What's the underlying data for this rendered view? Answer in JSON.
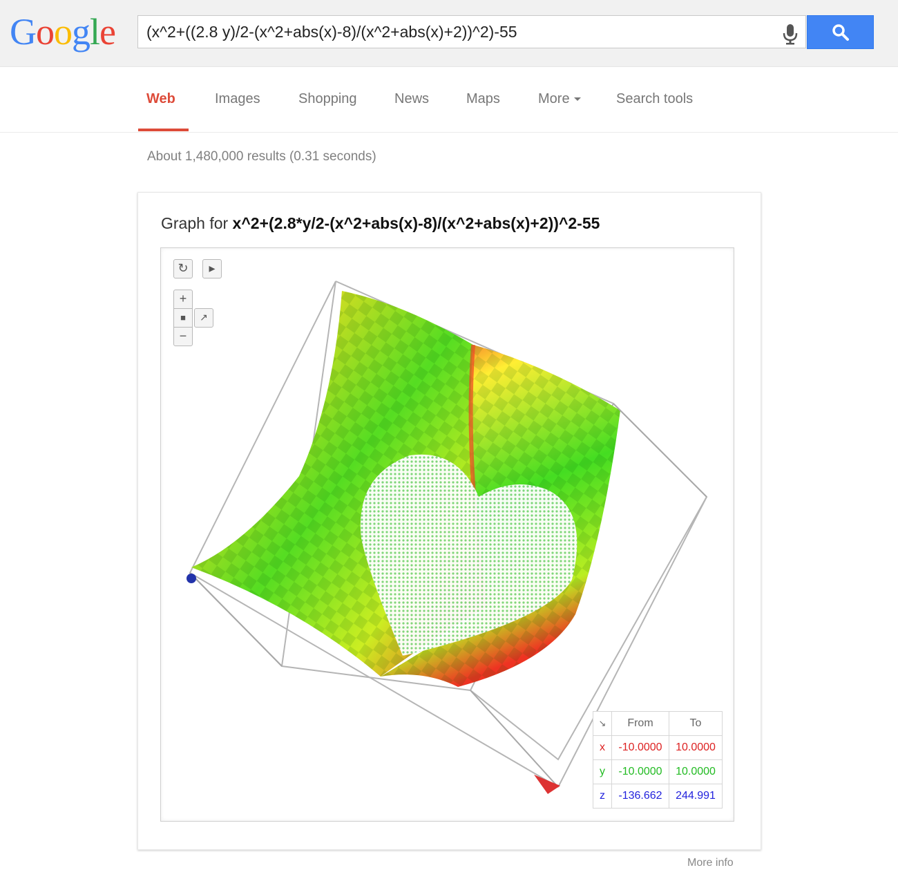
{
  "logo": {
    "text": "Google",
    "letters": [
      "G",
      "o",
      "o",
      "g",
      "l",
      "e"
    ],
    "colors": [
      "#4285f4",
      "#ea4335",
      "#fbbc05",
      "#4285f4",
      "#34a853",
      "#ea4335"
    ]
  },
  "search": {
    "query": "(x^2+((2.8 y)/2-(x^2+abs(x)-8)/(x^2+abs(x)+2))^2)-55",
    "mic_icon": "microphone-icon",
    "button_icon": "magnifier-icon"
  },
  "tabs": [
    {
      "label": "Web",
      "active": true
    },
    {
      "label": "Images"
    },
    {
      "label": "Shopping"
    },
    {
      "label": "News"
    },
    {
      "label": "Maps"
    },
    {
      "label": "More"
    },
    {
      "label": "Search tools"
    }
  ],
  "results_info": "About 1,480,000 results (0.31 seconds)",
  "graph": {
    "title_prefix": "Graph for",
    "expression": "x^2+(2.8*y/2-(x^2+abs(x)-8)/(x^2+abs(x)+2))^2-55",
    "controls": [
      "reset-view-icon",
      "play-icon",
      "zoom-in-icon",
      "camera-icon",
      "axes-icon",
      "zoom-out-icon"
    ],
    "range_table": {
      "corner_icon": "resize-arrow-icon",
      "headers": [
        "From",
        "To"
      ],
      "rows": [
        {
          "axis": "x",
          "from": "-10.0000",
          "to": "10.0000",
          "color": "#dd2222"
        },
        {
          "axis": "y",
          "from": "-10.0000",
          "to": "10.0000",
          "color": "#22bb22"
        },
        {
          "axis": "z",
          "from": "-136.662",
          "to": "244.991",
          "color": "#2222dd"
        }
      ]
    },
    "colors": {
      "surface_low": "#22cc22",
      "surface_mid": "#ffff33",
      "surface_high": "#ee3322",
      "heart": "#ffffff"
    }
  },
  "footer": {
    "more_info": "More info"
  }
}
